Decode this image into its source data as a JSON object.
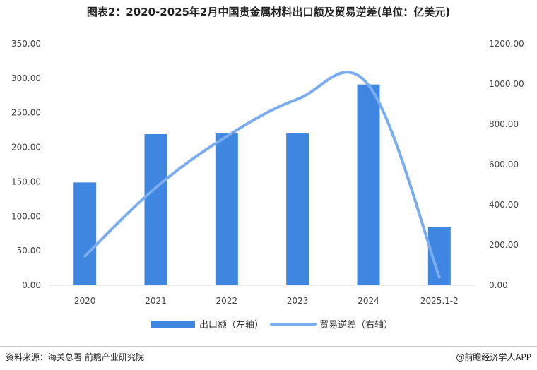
{
  "title": "图表2：2020-2025年2月中国贵金属材料出口额及贸易逆差(单位：亿美元)",
  "source": "资料来源：海关总署 前瞻产业研究院",
  "credit": "@前瞻经济学人APP",
  "colors": {
    "bar": "#3f86e0",
    "line": "#7aacf0",
    "grid": "#e6e6e6"
  },
  "chart_data": {
    "type": "bar+line",
    "categories": [
      "2020",
      "2021",
      "2022",
      "2023",
      "2024",
      "2025.1-2"
    ],
    "series": [
      {
        "name": "出口额（左轴）",
        "type": "bar",
        "axis": "left",
        "values": [
          149,
          219,
          220,
          220,
          291,
          84
        ]
      },
      {
        "name": "贸易逆差（右轴）",
        "type": "line",
        "axis": "right",
        "values": [
          145,
          485,
          740,
          925,
          995,
          40
        ]
      }
    ],
    "y_left": {
      "min": 0,
      "max": 350,
      "step": 50,
      "ticks": [
        "0.00",
        "50.00",
        "100.00",
        "150.00",
        "200.00",
        "250.00",
        "300.00",
        "350.00"
      ]
    },
    "y_right": {
      "min": 0,
      "max": 1200,
      "step": 200,
      "ticks": [
        "0.00",
        "200.00",
        "400.00",
        "600.00",
        "800.00",
        "1000.00",
        "1200.00"
      ]
    },
    "grid": false,
    "legend_position": "bottom"
  }
}
